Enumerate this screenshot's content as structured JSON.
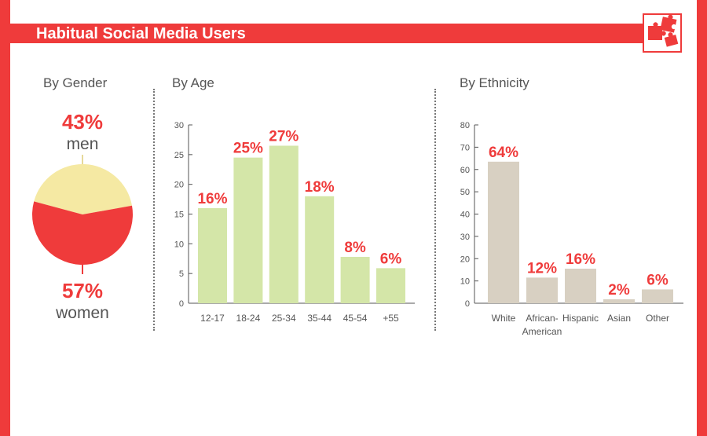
{
  "header": {
    "title": "Habitual Social Media Users",
    "logo_icon": "puzzle-pieces-icon"
  },
  "colors": {
    "accent": "#ef3b3b",
    "men": "#f5e9a3",
    "age_bars": "#d4e6a8",
    "ethnicity_bars": "#d8d0c2",
    "axis": "#555555"
  },
  "chart_data": [
    {
      "type": "pie",
      "title": "By Gender",
      "slices": [
        {
          "label": "men",
          "value": 43,
          "value_label": "43%"
        },
        {
          "label": "women",
          "value": 57,
          "value_label": "57%"
        }
      ]
    },
    {
      "type": "bar",
      "title": "By Age",
      "categories": [
        "12-17",
        "18-24",
        "25-34",
        "35-44",
        "45-54",
        "+55"
      ],
      "values": [
        16,
        25,
        27,
        18,
        8,
        6
      ],
      "value_labels": [
        "16%",
        "25%",
        "27%",
        "18%",
        "8%",
        "6%"
      ],
      "bar_heights": [
        16,
        24.5,
        26.5,
        18,
        7.8,
        5.9
      ],
      "yticks": [
        "0",
        "5",
        "10",
        "15",
        "20",
        "25",
        "30"
      ],
      "ylim": [
        0,
        30
      ]
    },
    {
      "type": "bar",
      "title": "By Ethnicity",
      "categories": [
        "White",
        "African-\nAmerican",
        "Hispanic",
        "Asian",
        "Other"
      ],
      "values": [
        64,
        12,
        16,
        2,
        6
      ],
      "value_labels": [
        "64%",
        "12%",
        "16%",
        "2%",
        "6%"
      ],
      "bar_heights": [
        63.5,
        11.5,
        15.5,
        1.8,
        6.2
      ],
      "yticks": [
        "0",
        "10",
        "20",
        "30",
        "40",
        "50",
        "60",
        "70",
        "80"
      ],
      "ylim": [
        0,
        80
      ]
    }
  ]
}
